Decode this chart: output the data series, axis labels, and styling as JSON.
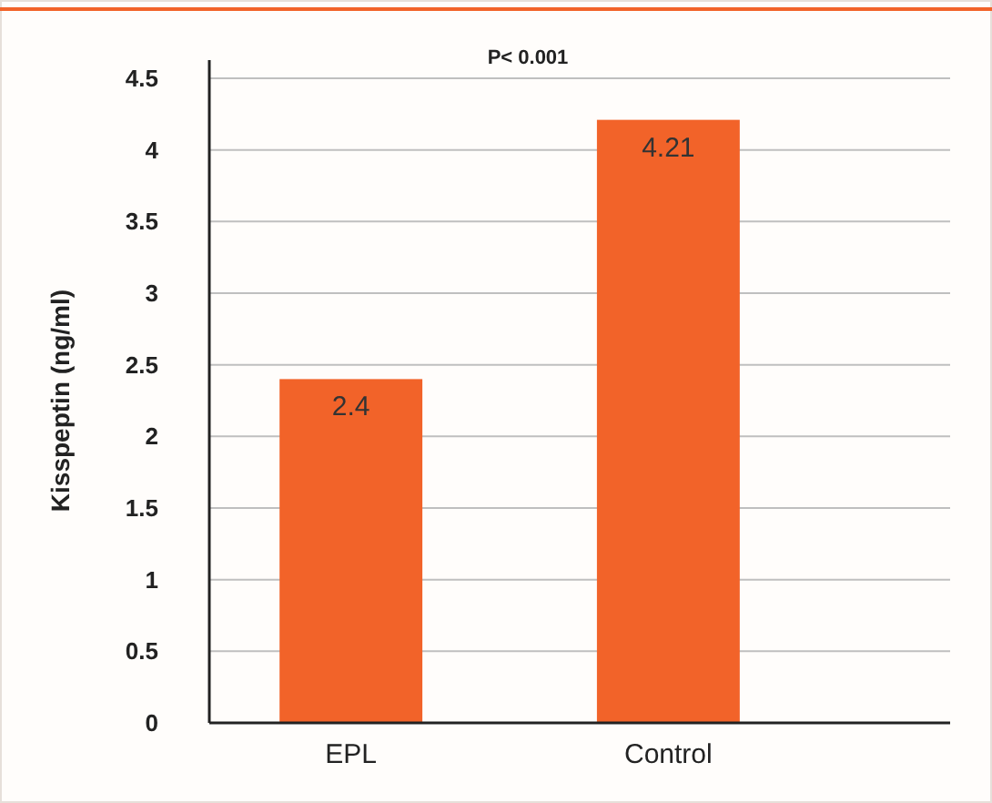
{
  "chart_data": {
    "type": "bar",
    "ylabel": "Kisspeptin (ng/ml)",
    "categories": [
      "EPL",
      "Control"
    ],
    "values": [
      2.4,
      4.21
    ],
    "color": "#f26329",
    "ylim": [
      0,
      4.5
    ],
    "yticks": [
      0,
      0.5,
      1,
      1.5,
      2,
      2.5,
      3,
      3.5,
      4,
      4.5
    ],
    "grid": "y",
    "data_labels": true,
    "annotations": [
      "P< 0.001"
    ]
  }
}
